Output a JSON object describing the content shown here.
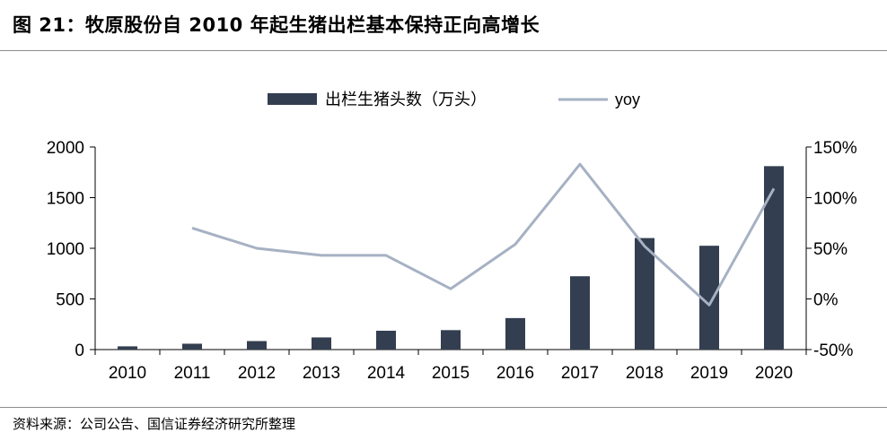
{
  "header": {
    "title": "图 21：牧原股份自 2010 年起生猪出栏基本保持正向高增长"
  },
  "footer": {
    "source": "资料来源：公司公告、国信证券经济研究所整理"
  },
  "colors": {
    "bar": "#333f50",
    "line": "#a6b1c3",
    "axis": "#000000"
  },
  "chart_data": {
    "type": "bar",
    "categories": [
      "2010",
      "2011",
      "2012",
      "2013",
      "2014",
      "2015",
      "2016",
      "2017",
      "2018",
      "2019",
      "2020"
    ],
    "series": [
      {
        "name": "出栏生猪头数（万头）",
        "type": "bar",
        "axis": "left",
        "values": [
          32,
          58,
          84,
          120,
          186,
          192,
          311,
          724,
          1101,
          1025,
          1811
        ]
      },
      {
        "name": "yoy",
        "type": "line",
        "axis": "right",
        "values": [
          null,
          0.7,
          0.5,
          0.43,
          0.43,
          0.1,
          0.54,
          1.33,
          0.52,
          -0.06,
          1.09
        ]
      }
    ],
    "y_left": {
      "ylim": [
        0,
        2000
      ],
      "ticks": [
        0,
        500,
        1000,
        1500,
        2000
      ],
      "tick_labels": [
        "0",
        "500",
        "1000",
        "1500",
        "2000"
      ]
    },
    "y_right": {
      "ylim": [
        -0.5,
        1.5
      ],
      "ticks": [
        -0.5,
        0,
        0.5,
        1.0,
        1.5
      ],
      "tick_labels": [
        "-50%",
        "0%",
        "50%",
        "100%",
        "150%"
      ]
    },
    "legend_position": "top-center",
    "grid": false
  }
}
